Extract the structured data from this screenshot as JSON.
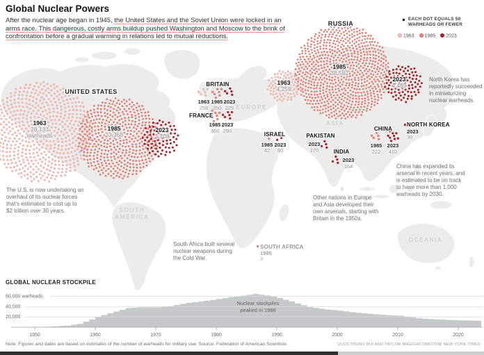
{
  "header": {
    "title": "Global Nuclear Powers",
    "intro_segments": [
      {
        "text": "After the nuclear age began in 1945, ",
        "underline": false
      },
      {
        "text": "the United States and the Soviet Union were locked in an arms race. This dangerous, costly arms buildup pushed Washington and Moscow to the brink of confrontation before a gradual warming in relations led to mutual reductions.",
        "underline": true
      }
    ]
  },
  "legend": {
    "dot_note": "EACH DOT EQUALS 50 WARHEADS OR FEWER",
    "warheads_per_dot": 50,
    "years": [
      {
        "label": "1963",
        "fill": "#f2c3bc",
        "stroke": "#e59d94"
      },
      {
        "label": "1985",
        "fill": "#e9897d",
        "stroke": "#d66155"
      },
      {
        "label": "2023",
        "fill": "#bb2025",
        "stroke": "#96181d"
      }
    ]
  },
  "map": {
    "region_titles": [
      {
        "id": "united-states",
        "text": "UNITED STATES"
      },
      {
        "id": "russia",
        "text": "RUSSIA"
      }
    ],
    "continent_labels": [
      {
        "id": "europe",
        "text": "EUROPE"
      },
      {
        "id": "asia",
        "text": "ASIA"
      },
      {
        "id": "south-america",
        "text": "SOUTH AMERICA"
      },
      {
        "id": "oceania",
        "text": "OCEANIA"
      }
    ],
    "first_cluster_suffix": "warheads"
  },
  "annotations": [
    {
      "id": "us-note",
      "text": "The U.S. is now undertaking an overhaul of its nuclear forces that’s estimated to cost up to $2 trillion over 30 years."
    },
    {
      "id": "sa-note",
      "text": "South Africa built several nuclear weapons during the Cold War."
    },
    {
      "id": "other-note",
      "text": "Other nations in Europe and Asia developed their own arsenals, starting with Britain in the 1950s."
    },
    {
      "id": "nk-note",
      "text": "North Korea has reportedly succeeded in miniaturizing nuclear warheads."
    },
    {
      "id": "cn-note",
      "text": "China has expanded its arsenal in recent years, and is estimated to be on track to have more than 1,000 warheads by 2030."
    }
  ],
  "chart_data": [
    {
      "type": "scatter",
      "title": "Nuclear warheads by country and year (each dot = 50 warheads or fewer)",
      "unit": "warheads",
      "clusters": [
        {
          "id": "united-states-1963",
          "country": "United States",
          "year": "1963",
          "warheads": 28133,
          "big": true
        },
        {
          "id": "united-states-1985",
          "country": "United States",
          "year": "1985",
          "warheads": 23368,
          "big": true
        },
        {
          "id": "united-states-2023",
          "country": "United States",
          "year": "2023",
          "warheads": 3708,
          "big": true
        },
        {
          "id": "russia-1963",
          "country": "Russia",
          "year": "1963",
          "warheads": 4259,
          "big": true
        },
        {
          "id": "russia-1985",
          "country": "Russia",
          "year": "1985",
          "warheads": 38582,
          "big": true
        },
        {
          "id": "russia-2023",
          "country": "Russia",
          "year": "2023",
          "warheads": 4489,
          "big": true
        },
        {
          "id": "britain-1963",
          "country": "Britain",
          "year": "1963",
          "warheads": 256
        },
        {
          "id": "britain-1985",
          "country": "Britain",
          "year": "1985",
          "warheads": 350
        },
        {
          "id": "britain-2023",
          "country": "Britain",
          "year": "2023",
          "warheads": 225
        },
        {
          "id": "france-1985",
          "country": "France",
          "year": "1985",
          "warheads": 360
        },
        {
          "id": "france-2023",
          "country": "France",
          "year": "2023",
          "warheads": 290
        },
        {
          "id": "israel-1985",
          "country": "Israel",
          "year": "1985",
          "warheads": 42
        },
        {
          "id": "israel-2023",
          "country": "Israel",
          "year": "2023",
          "warheads": 90
        },
        {
          "id": "pakistan-2023",
          "country": "Pakistan",
          "year": "2023",
          "warheads": 170
        },
        {
          "id": "india-2023",
          "country": "India",
          "year": "2023",
          "warheads": 164
        },
        {
          "id": "china-1985",
          "country": "China",
          "year": "1985",
          "warheads": 222
        },
        {
          "id": "china-2023",
          "country": "China",
          "year": "2023",
          "warheads": 410
        },
        {
          "id": "north-korea-2023",
          "country": "North Korea",
          "year": "2023",
          "warheads": 30
        },
        {
          "id": "south-africa-1985",
          "country": "South Africa",
          "year": "1985",
          "warheads": 3
        }
      ]
    },
    {
      "type": "area",
      "title": "GLOBAL NUCLEAR STOCKPILE",
      "ylabel": "warheads",
      "points": [
        [
          1945,
          100
        ],
        [
          1948,
          250
        ],
        [
          1950,
          400
        ],
        [
          1952,
          1000
        ],
        [
          1955,
          3000
        ],
        [
          1957,
          6500
        ],
        [
          1959,
          15000
        ],
        [
          1960,
          20300
        ],
        [
          1962,
          27100
        ],
        [
          1965,
          37200
        ],
        [
          1967,
          38700
        ],
        [
          1970,
          38600
        ],
        [
          1972,
          41000
        ],
        [
          1975,
          47500
        ],
        [
          1978,
          51500
        ],
        [
          1980,
          54800
        ],
        [
          1982,
          58500
        ],
        [
          1984,
          61500
        ],
        [
          1986,
          64500
        ],
        [
          1988,
          62000
        ],
        [
          1990,
          57000
        ],
        [
          1992,
          50000
        ],
        [
          1995,
          39000
        ],
        [
          1998,
          34500
        ],
        [
          2000,
          32300
        ],
        [
          2003,
          28000
        ],
        [
          2005,
          26000
        ],
        [
          2008,
          23500
        ],
        [
          2010,
          22400
        ],
        [
          2013,
          17500
        ],
        [
          2015,
          15850
        ],
        [
          2018,
          14200
        ],
        [
          2020,
          13400
        ],
        [
          2023,
          12500
        ]
      ],
      "yticks": [
        {
          "value": 60000,
          "label": "60,000 warheads"
        },
        {
          "value": 40000,
          "label": "40,000"
        },
        {
          "value": 20000,
          "label": "20,000"
        }
      ],
      "xticks": [
        "1950",
        "1960",
        "1970",
        "1980",
        "1990",
        "2000",
        "2010",
        "2020"
      ],
      "xlim": [
        1945,
        2024
      ],
      "ylim": [
        0,
        66000
      ],
      "grid": true,
      "legend_position": "none",
      "annotation": "Nuclear stockpiles peaked in 1986"
    }
  ],
  "footer": {
    "note": "Note: Figures and dates are based on estimates of the number of warheads for military use. Source: Federation of American Scientists",
    "credit": "QUOCTRUNG BUI AND TAYLOR MAGGIACOMO/THE NEW YORK TIMES"
  }
}
